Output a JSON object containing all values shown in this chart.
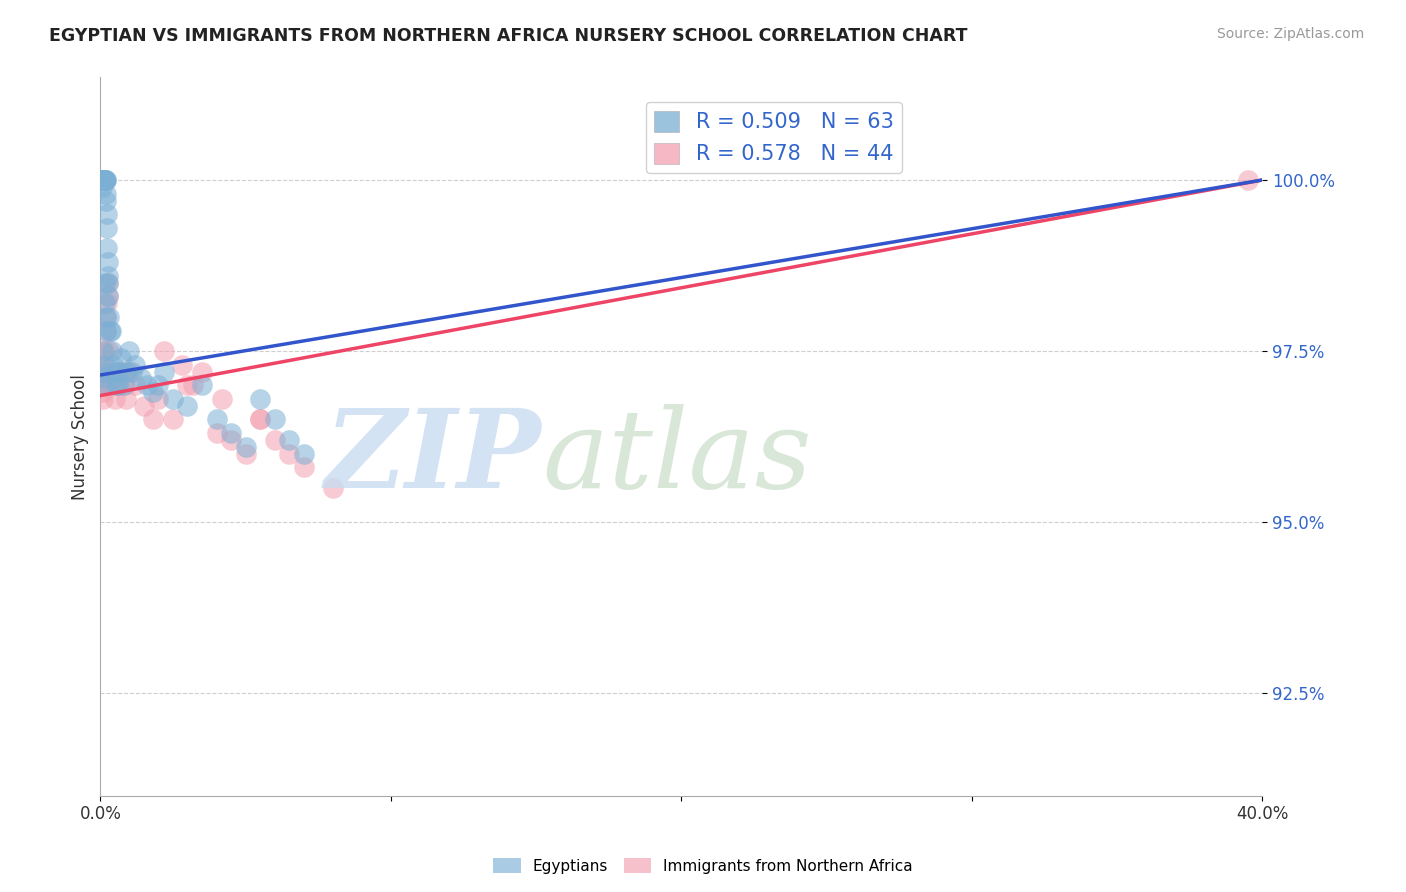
{
  "title": "EGYPTIAN VS IMMIGRANTS FROM NORTHERN AFRICA NURSERY SCHOOL CORRELATION CHART",
  "source": "Source: ZipAtlas.com",
  "ylabel": "Nursery School",
  "xlim": [
    0.0,
    40.0
  ],
  "ylim": [
    91.0,
    101.5
  ],
  "yticks": [
    92.5,
    95.0,
    97.5,
    100.0
  ],
  "yticklabels": [
    "92.5%",
    "95.0%",
    "97.5%",
    "100.0%"
  ],
  "blue_color": "#7BAFD4",
  "pink_color": "#F4A0B0",
  "blue_line_color": "#3355CC",
  "pink_line_color": "#EE4466",
  "r_blue": 0.509,
  "n_blue": 63,
  "r_pink": 0.578,
  "n_pink": 44,
  "legend_labels": [
    "Egyptians",
    "Immigrants from Northern Africa"
  ],
  "blue_line_x0": 0.0,
  "blue_line_y0": 97.15,
  "blue_line_x1": 40.0,
  "blue_line_y1": 100.0,
  "pink_line_x0": 0.0,
  "pink_line_y0": 96.85,
  "pink_line_x1": 40.0,
  "pink_line_y1": 100.0,
  "blue_x": [
    0.05,
    0.06,
    0.07,
    0.08,
    0.09,
    0.1,
    0.11,
    0.12,
    0.13,
    0.14,
    0.15,
    0.16,
    0.17,
    0.18,
    0.19,
    0.2,
    0.21,
    0.22,
    0.23,
    0.24,
    0.25,
    0.26,
    0.27,
    0.28,
    0.3,
    0.32,
    0.35,
    0.4,
    0.45,
    0.5,
    0.55,
    0.6,
    0.65,
    0.7,
    0.8,
    0.9,
    1.0,
    1.1,
    1.2,
    1.4,
    1.6,
    1.8,
    2.0,
    2.2,
    2.5,
    3.0,
    3.5,
    4.0,
    4.5,
    5.0,
    5.5,
    6.0,
    6.5,
    7.0,
    0.08,
    0.09,
    0.1,
    0.12,
    0.13,
    0.15,
    0.16,
    0.18,
    0.2
  ],
  "blue_y": [
    99.9,
    100.0,
    100.0,
    100.0,
    100.0,
    100.0,
    100.0,
    100.0,
    100.0,
    100.0,
    100.0,
    100.0,
    100.0,
    100.0,
    100.0,
    99.8,
    99.7,
    99.5,
    99.3,
    99.0,
    98.8,
    98.6,
    98.5,
    98.3,
    98.0,
    97.8,
    97.8,
    97.5,
    97.3,
    97.2,
    97.0,
    97.0,
    97.2,
    97.4,
    97.0,
    97.2,
    97.5,
    97.2,
    97.3,
    97.1,
    97.0,
    96.9,
    97.0,
    97.2,
    96.8,
    96.7,
    97.0,
    96.5,
    96.3,
    96.1,
    96.8,
    96.5,
    96.2,
    96.0,
    97.5,
    97.3,
    97.2,
    97.1,
    97.0,
    98.5,
    98.2,
    98.0,
    97.8
  ],
  "pink_x": [
    0.05,
    0.06,
    0.07,
    0.08,
    0.09,
    0.1,
    0.12,
    0.14,
    0.16,
    0.18,
    0.2,
    0.22,
    0.25,
    0.28,
    0.3,
    0.35,
    0.4,
    0.5,
    0.6,
    0.7,
    0.8,
    0.9,
    1.0,
    1.2,
    1.5,
    1.8,
    2.0,
    2.5,
    3.0,
    3.5,
    4.0,
    4.5,
    5.0,
    5.5,
    6.0,
    6.5,
    7.0,
    8.0,
    2.2,
    2.8,
    3.2,
    4.2,
    5.5,
    39.5
  ],
  "pink_y": [
    97.5,
    97.3,
    97.2,
    97.0,
    96.9,
    96.8,
    97.0,
    97.2,
    97.5,
    97.8,
    98.0,
    98.2,
    98.3,
    98.5,
    97.5,
    97.2,
    97.0,
    96.8,
    97.0,
    97.2,
    97.0,
    96.8,
    97.2,
    97.0,
    96.7,
    96.5,
    96.8,
    96.5,
    97.0,
    97.2,
    96.3,
    96.2,
    96.0,
    96.5,
    96.2,
    96.0,
    95.8,
    95.5,
    97.5,
    97.3,
    97.0,
    96.8,
    96.5,
    100.0
  ],
  "background_color": "#FFFFFF",
  "grid_color": "#BBBBBB"
}
